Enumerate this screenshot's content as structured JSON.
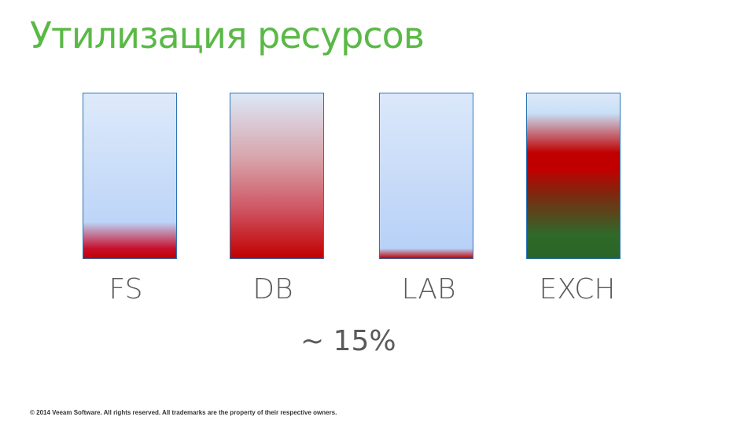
{
  "title": "Утилизация ресурсов",
  "bars": [
    {
      "label": "FS"
    },
    {
      "label": "DB"
    },
    {
      "label": "LAB"
    },
    {
      "label": "EXCH"
    }
  ],
  "note": "~ 15%",
  "footer": "© 2014 Veeam Software. All rights reserved. All trademarks are the property of their respective owners.",
  "colors": {
    "title": "#5ab946",
    "bar_border": "#2e75b6",
    "light_blue": "#bdd5f8",
    "red": "#c00000",
    "green": "#2a6326",
    "text_gray": "#5a5a5a"
  }
}
